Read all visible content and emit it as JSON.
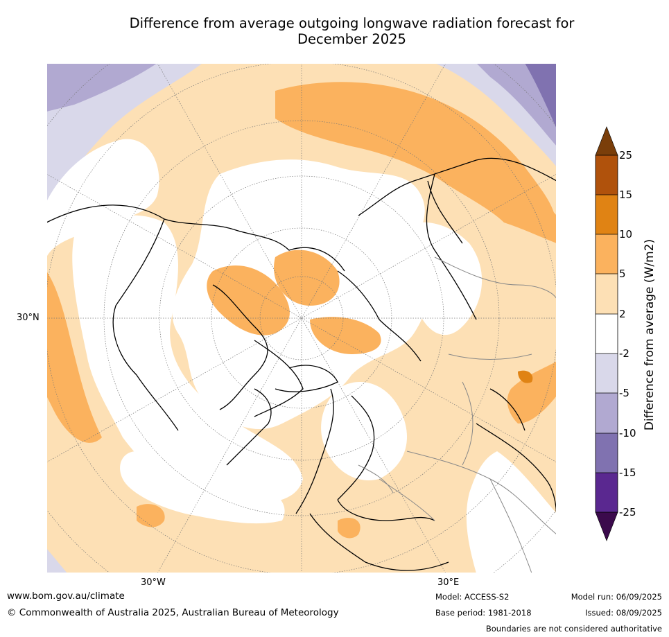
{
  "title_line1": "Difference from average outgoing longwave radiation forecast for",
  "title_line2": "December 2025",
  "axis_labels": {
    "lat": "30°N",
    "lon_left": "30°W",
    "lon_right": "30°E"
  },
  "colorbar": {
    "label": "Difference from average (W/m2)",
    "ticks": [
      "25",
      "15",
      "10",
      "5",
      "2",
      "-2",
      "-5",
      "-10",
      "-15",
      "-25"
    ],
    "colors": {
      "gt25": "#7a3e0a",
      "15_25": "#b0520c",
      "10_15": "#e08314",
      "5_10": "#fbb25e",
      "2_5": "#fde0b5",
      "m2_2": "#ffffff",
      "m5_m2": "#d9d8ea",
      "m10_m5": "#b1a9d1",
      "m15_m10": "#8072b0",
      "m25_m15": "#5a2890",
      "lt_m25": "#3b0a4c"
    }
  },
  "footer": {
    "url": "www.bom.gov.au/climate",
    "copyright": "© Commonwealth of Australia 2025, Australian Bureau of Meteorology",
    "model": "Model: ACCESS-S2",
    "base_period": "Base period: 1981-2018",
    "model_run": "Model run: 06/09/2025",
    "issued": "Issued: 08/09/2025",
    "disclaimer": "Boundaries are not considered authoritative"
  }
}
